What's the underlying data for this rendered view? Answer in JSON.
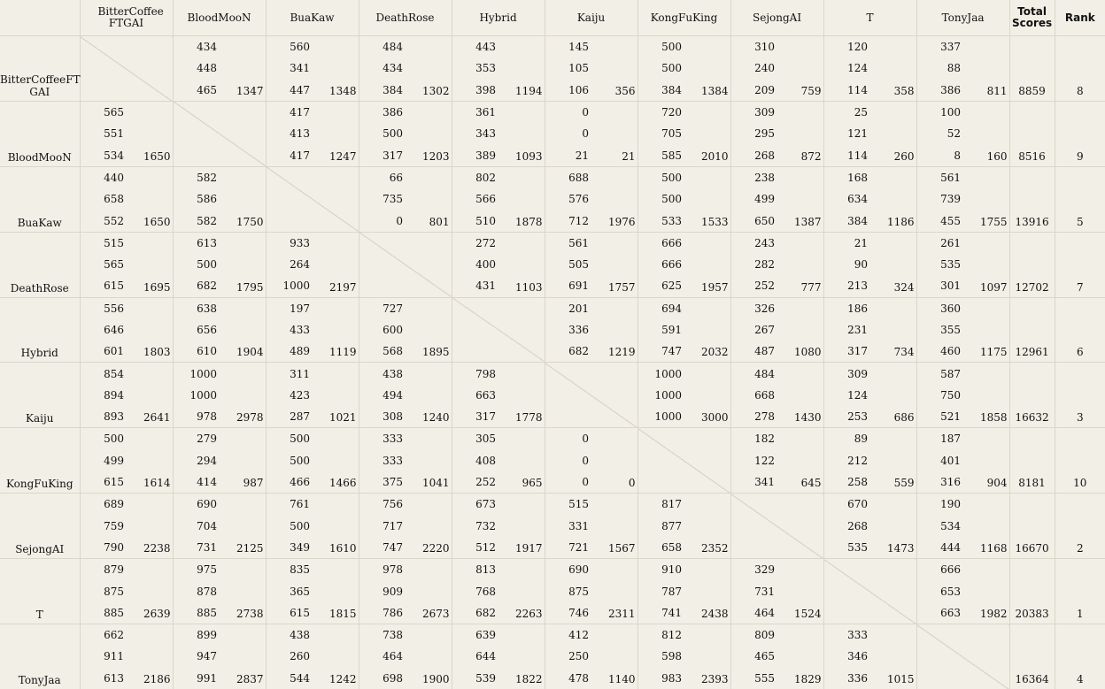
{
  "headers": {
    "teams": [
      "BitterCoffee FTGAI",
      "BloodMooN",
      "BuaKaw",
      "DeathRose",
      "Hybrid",
      "Kaiju",
      "KongFuKing",
      "SejongAI",
      "T",
      "TonyJaa"
    ],
    "total": "Total Scores",
    "rank": "Rank"
  },
  "rows": [
    {
      "name": "BitterCoffeeFT GAI",
      "cells": [
        null,
        {
          "s": [
            "434",
            "448",
            "465"
          ],
          "t": "1347"
        },
        {
          "s": [
            "560",
            "341",
            "447"
          ],
          "t": "1348"
        },
        {
          "s": [
            "484",
            "434",
            "384"
          ],
          "t": "1302"
        },
        {
          "s": [
            "443",
            "353",
            "398"
          ],
          "t": "1194"
        },
        {
          "s": [
            "145",
            "105",
            "106"
          ],
          "t": "356"
        },
        {
          "s": [
            "500",
            "500",
            "384"
          ],
          "t": "1384"
        },
        {
          "s": [
            "310",
            "240",
            "209"
          ],
          "t": "759"
        },
        {
          "s": [
            "120",
            "124",
            "114"
          ],
          "t": "358"
        },
        {
          "s": [
            "337",
            "88",
            "386"
          ],
          "t": "811"
        }
      ],
      "total": "8859",
      "rank": "8"
    },
    {
      "name": "BloodMooN",
      "cells": [
        {
          "s": [
            "565",
            "551",
            "534"
          ],
          "t": "1650"
        },
        null,
        {
          "s": [
            "417",
            "413",
            "417"
          ],
          "t": "1247"
        },
        {
          "s": [
            "386",
            "500",
            "317"
          ],
          "t": "1203"
        },
        {
          "s": [
            "361",
            "343",
            "389"
          ],
          "t": "1093"
        },
        {
          "s": [
            "0",
            "0",
            "21"
          ],
          "t": "21"
        },
        {
          "s": [
            "720",
            "705",
            "585"
          ],
          "t": "2010"
        },
        {
          "s": [
            "309",
            "295",
            "268"
          ],
          "t": "872"
        },
        {
          "s": [
            "25",
            "121",
            "114"
          ],
          "t": "260"
        },
        {
          "s": [
            "100",
            "52",
            "8"
          ],
          "t": "160"
        }
      ],
      "total": "8516",
      "rank": "9"
    },
    {
      "name": "BuaKaw",
      "cells": [
        {
          "s": [
            "440",
            "658",
            "552"
          ],
          "t": "1650"
        },
        {
          "s": [
            "582",
            "586",
            "582"
          ],
          "t": "1750"
        },
        null,
        {
          "s": [
            "66",
            "735",
            "0"
          ],
          "t": "801"
        },
        {
          "s": [
            "802",
            "566",
            "510"
          ],
          "t": "1878"
        },
        {
          "s": [
            "688",
            "576",
            "712"
          ],
          "t": "1976"
        },
        {
          "s": [
            "500",
            "500",
            "533"
          ],
          "t": "1533"
        },
        {
          "s": [
            "238",
            "499",
            "650"
          ],
          "t": "1387"
        },
        {
          "s": [
            "168",
            "634",
            "384"
          ],
          "t": "1186"
        },
        {
          "s": [
            "561",
            "739",
            "455"
          ],
          "t": "1755"
        }
      ],
      "total": "13916",
      "rank": "5"
    },
    {
      "name": "DeathRose",
      "cells": [
        {
          "s": [
            "515",
            "565",
            "615"
          ],
          "t": "1695"
        },
        {
          "s": [
            "613",
            "500",
            "682"
          ],
          "t": "1795"
        },
        {
          "s": [
            "933",
            "264",
            "1000"
          ],
          "t": "2197"
        },
        null,
        {
          "s": [
            "272",
            "400",
            "431"
          ],
          "t": "1103"
        },
        {
          "s": [
            "561",
            "505",
            "691"
          ],
          "t": "1757"
        },
        {
          "s": [
            "666",
            "666",
            "625"
          ],
          "t": "1957"
        },
        {
          "s": [
            "243",
            "282",
            "252"
          ],
          "t": "777"
        },
        {
          "s": [
            "21",
            "90",
            "213"
          ],
          "t": "324"
        },
        {
          "s": [
            "261",
            "535",
            "301"
          ],
          "t": "1097"
        }
      ],
      "total": "12702",
      "rank": "7"
    },
    {
      "name": "Hybrid",
      "cells": [
        {
          "s": [
            "556",
            "646",
            "601"
          ],
          "t": "1803"
        },
        {
          "s": [
            "638",
            "656",
            "610"
          ],
          "t": "1904"
        },
        {
          "s": [
            "197",
            "433",
            "489"
          ],
          "t": "1119"
        },
        {
          "s": [
            "727",
            "600",
            "568"
          ],
          "t": "1895"
        },
        null,
        {
          "s": [
            "201",
            "336",
            "682"
          ],
          "t": "1219"
        },
        {
          "s": [
            "694",
            "591",
            "747"
          ],
          "t": "2032"
        },
        {
          "s": [
            "326",
            "267",
            "487"
          ],
          "t": "1080"
        },
        {
          "s": [
            "186",
            "231",
            "317"
          ],
          "t": "734"
        },
        {
          "s": [
            "360",
            "355",
            "460"
          ],
          "t": "1175"
        }
      ],
      "total": "12961",
      "rank": "6"
    },
    {
      "name": "Kaiju",
      "cells": [
        {
          "s": [
            "854",
            "894",
            "893"
          ],
          "t": "2641"
        },
        {
          "s": [
            "1000",
            "1000",
            "978"
          ],
          "t": "2978"
        },
        {
          "s": [
            "311",
            "423",
            "287"
          ],
          "t": "1021"
        },
        {
          "s": [
            "438",
            "494",
            "308"
          ],
          "t": "1240"
        },
        {
          "s": [
            "798",
            "663",
            "317"
          ],
          "t": "1778"
        },
        null,
        {
          "s": [
            "1000",
            "1000",
            "1000"
          ],
          "t": "3000"
        },
        {
          "s": [
            "484",
            "668",
            "278"
          ],
          "t": "1430"
        },
        {
          "s": [
            "309",
            "124",
            "253"
          ],
          "t": "686"
        },
        {
          "s": [
            "587",
            "750",
            "521"
          ],
          "t": "1858"
        }
      ],
      "total": "16632",
      "rank": "3"
    },
    {
      "name": "KongFuKing",
      "cells": [
        {
          "s": [
            "500",
            "499",
            "615"
          ],
          "t": "1614"
        },
        {
          "s": [
            "279",
            "294",
            "414"
          ],
          "t": "987"
        },
        {
          "s": [
            "500",
            "500",
            "466"
          ],
          "t": "1466"
        },
        {
          "s": [
            "333",
            "333",
            "375"
          ],
          "t": "1041"
        },
        {
          "s": [
            "305",
            "408",
            "252"
          ],
          "t": "965"
        },
        {
          "s": [
            "0",
            "0",
            "0"
          ],
          "t": "0"
        },
        null,
        {
          "s": [
            "182",
            "122",
            "341"
          ],
          "t": "645"
        },
        {
          "s": [
            "89",
            "212",
            "258"
          ],
          "t": "559"
        },
        {
          "s": [
            "187",
            "401",
            "316"
          ],
          "t": "904"
        }
      ],
      "total": "8181",
      "rank": "10"
    },
    {
      "name": "SejongAI",
      "cells": [
        {
          "s": [
            "689",
            "759",
            "790"
          ],
          "t": "2238"
        },
        {
          "s": [
            "690",
            "704",
            "731"
          ],
          "t": "2125"
        },
        {
          "s": [
            "761",
            "500",
            "349"
          ],
          "t": "1610"
        },
        {
          "s": [
            "756",
            "717",
            "747"
          ],
          "t": "2220"
        },
        {
          "s": [
            "673",
            "732",
            "512"
          ],
          "t": "1917"
        },
        {
          "s": [
            "515",
            "331",
            "721"
          ],
          "t": "1567"
        },
        {
          "s": [
            "817",
            "877",
            "658"
          ],
          "t": "2352"
        },
        null,
        {
          "s": [
            "670",
            "268",
            "535"
          ],
          "t": "1473"
        },
        {
          "s": [
            "190",
            "534",
            "444"
          ],
          "t": "1168"
        }
      ],
      "total": "16670",
      "rank": "2"
    },
    {
      "name": "T",
      "cells": [
        {
          "s": [
            "879",
            "875",
            "885"
          ],
          "t": "2639"
        },
        {
          "s": [
            "975",
            "878",
            "885"
          ],
          "t": "2738"
        },
        {
          "s": [
            "835",
            "365",
            "615"
          ],
          "t": "1815"
        },
        {
          "s": [
            "978",
            "909",
            "786"
          ],
          "t": "2673"
        },
        {
          "s": [
            "813",
            "768",
            "682"
          ],
          "t": "2263"
        },
        {
          "s": [
            "690",
            "875",
            "746"
          ],
          "t": "2311"
        },
        {
          "s": [
            "910",
            "787",
            "741"
          ],
          "t": "2438"
        },
        {
          "s": [
            "329",
            "731",
            "464"
          ],
          "t": "1524"
        },
        null,
        {
          "s": [
            "666",
            "653",
            "663"
          ],
          "t": "1982"
        }
      ],
      "total": "20383",
      "rank": "1"
    },
    {
      "name": "TonyJaa",
      "cells": [
        {
          "s": [
            "662",
            "911",
            "613"
          ],
          "t": "2186"
        },
        {
          "s": [
            "899",
            "947",
            "991"
          ],
          "t": "2837"
        },
        {
          "s": [
            "438",
            "260",
            "544"
          ],
          "t": "1242"
        },
        {
          "s": [
            "738",
            "464",
            "698"
          ],
          "t": "1900"
        },
        {
          "s": [
            "639",
            "644",
            "539"
          ],
          "t": "1822"
        },
        {
          "s": [
            "412",
            "250",
            "478"
          ],
          "t": "1140"
        },
        {
          "s": [
            "812",
            "598",
            "983"
          ],
          "t": "2393"
        },
        {
          "s": [
            "809",
            "465",
            "555"
          ],
          "t": "1829"
        },
        {
          "s": [
            "333",
            "346",
            "336"
          ],
          "t": "1015"
        },
        null
      ],
      "total": "16364",
      "rank": "4"
    }
  ]
}
